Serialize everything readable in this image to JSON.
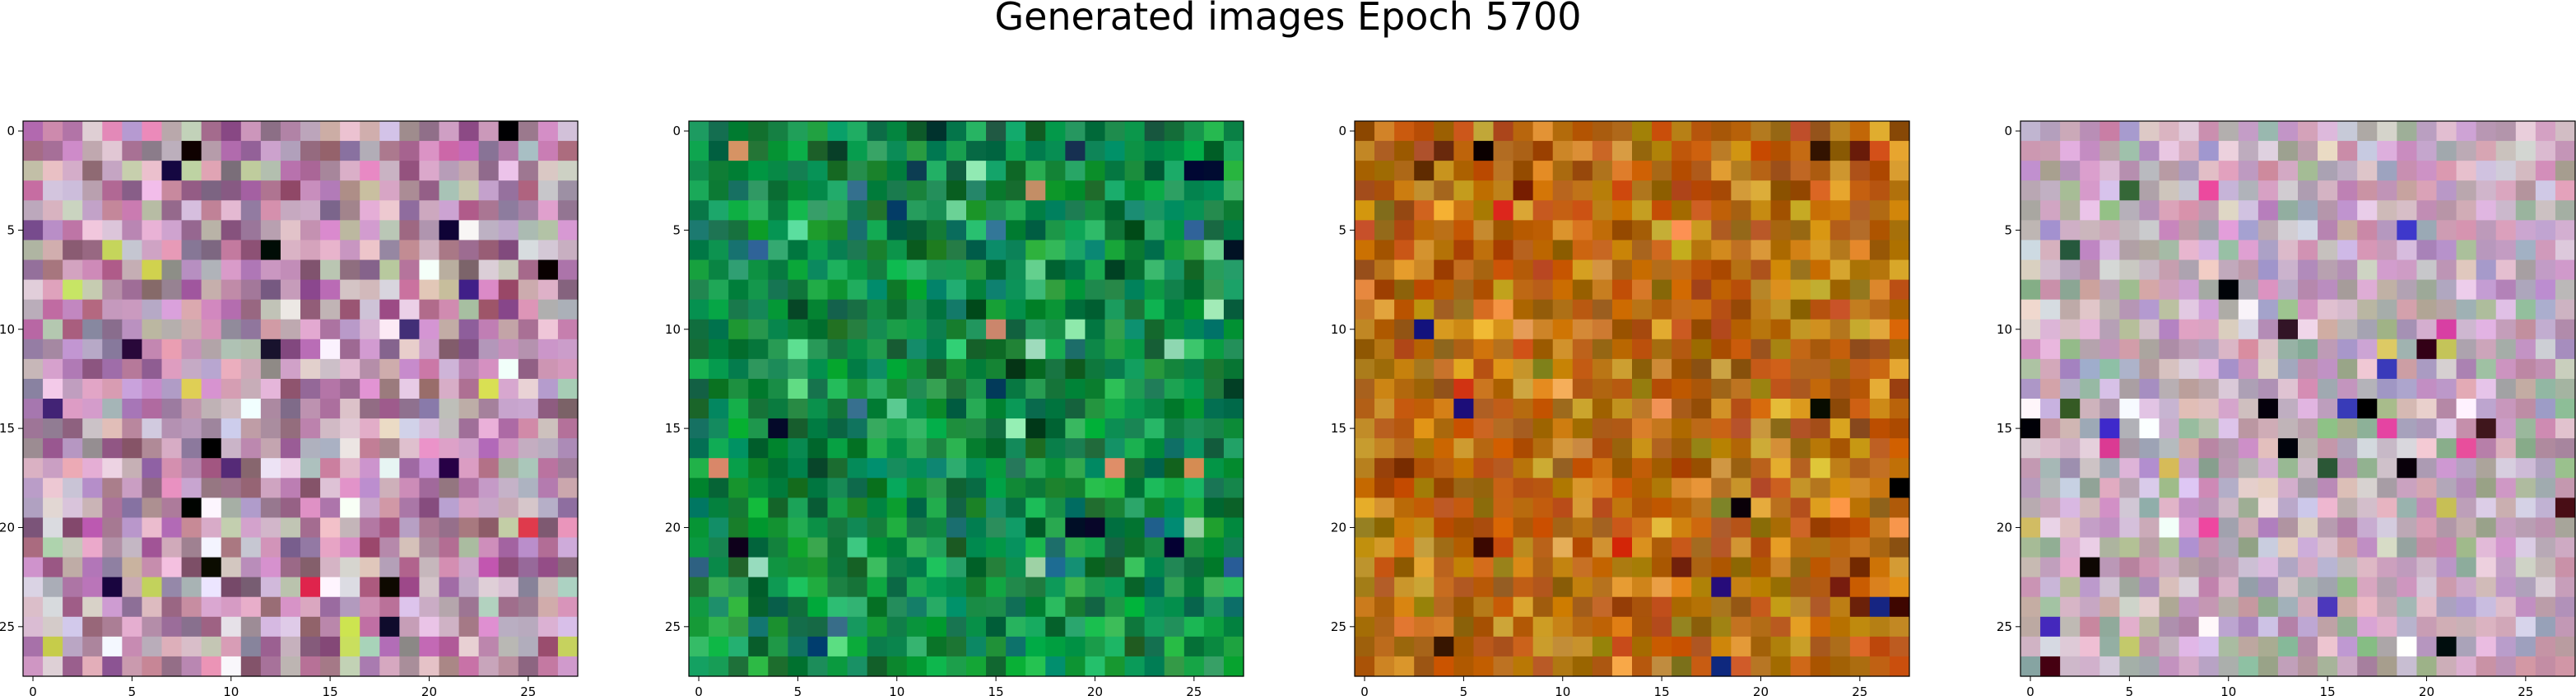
{
  "figure": {
    "title": "Generated images Epoch 5700"
  },
  "chart_data": [
    {
      "type": "heatmap",
      "grid_size": 28,
      "xticks": [
        0,
        5,
        10,
        15,
        20,
        25
      ],
      "yticks": [
        0,
        5,
        10,
        15,
        20,
        25
      ],
      "palette": [
        "#c49ab8",
        "#d8b4c8",
        "#b87aa6",
        "#e0c8d8",
        "#a06890",
        "#c8a0c0",
        "#8a5a7a",
        "#d89cc0",
        "#b8c0b0",
        "#9a7c98"
      ],
      "accents": [
        "#000000",
        "#1a0a3a",
        "#e0304a",
        "#f0e8f0",
        "#d0d858",
        "#4a2a80",
        "#ffffff",
        "#c050b0"
      ],
      "seed": 11
    },
    {
      "type": "heatmap",
      "grid_size": 28,
      "xticks": [
        0,
        5,
        10,
        15,
        20,
        25
      ],
      "yticks": [
        0,
        5,
        10,
        15,
        20,
        25
      ],
      "palette": [
        "#0a8a3a",
        "#10a040",
        "#0c7a40",
        "#1a9a58",
        "#08703a",
        "#20a850",
        "#0e6a30",
        "#2ab060",
        "#0a8060",
        "#158848"
      ],
      "accents": [
        "#000a2a",
        "#3ac878",
        "#d08a60",
        "#0a3a60",
        "#60d090",
        "#004020",
        "#9ae0b0",
        "#2a6a90"
      ],
      "seed": 23
    },
    {
      "type": "heatmap",
      "grid_size": 28,
      "xticks": [
        0,
        5,
        10,
        15,
        20,
        25
      ],
      "yticks": [
        0,
        5,
        10,
        15,
        20,
        25
      ],
      "palette": [
        "#c06a10",
        "#b85a08",
        "#d08a20",
        "#a85008",
        "#c87818",
        "#b86810",
        "#9a5a0a",
        "#d49a30",
        "#c05a18",
        "#a87010"
      ],
      "accents": [
        "#3a0a00",
        "#e8b840",
        "#000000",
        "#f0a050",
        "#6a2000",
        "#e03010",
        "#1a1a80",
        "#8a7a20"
      ],
      "seed": 37
    },
    {
      "type": "heatmap",
      "grid_size": 28,
      "xticks": [
        0,
        5,
        10,
        15,
        20,
        25
      ],
      "yticks": [
        0,
        5,
        10,
        15,
        20,
        25
      ],
      "palette": [
        "#d0b0c8",
        "#c0a0b8",
        "#e0c8d8",
        "#b890b0",
        "#a8b0a8",
        "#c8a8c0",
        "#d8c0d0",
        "#b0a0c0",
        "#c89ab0",
        "#98b098"
      ],
      "accents": [
        "#000000",
        "#e8d0e8",
        "#3a0a1a",
        "#e040a0",
        "#4030c0",
        "#ffffff",
        "#306030",
        "#d0c060"
      ],
      "seed": 53
    }
  ]
}
